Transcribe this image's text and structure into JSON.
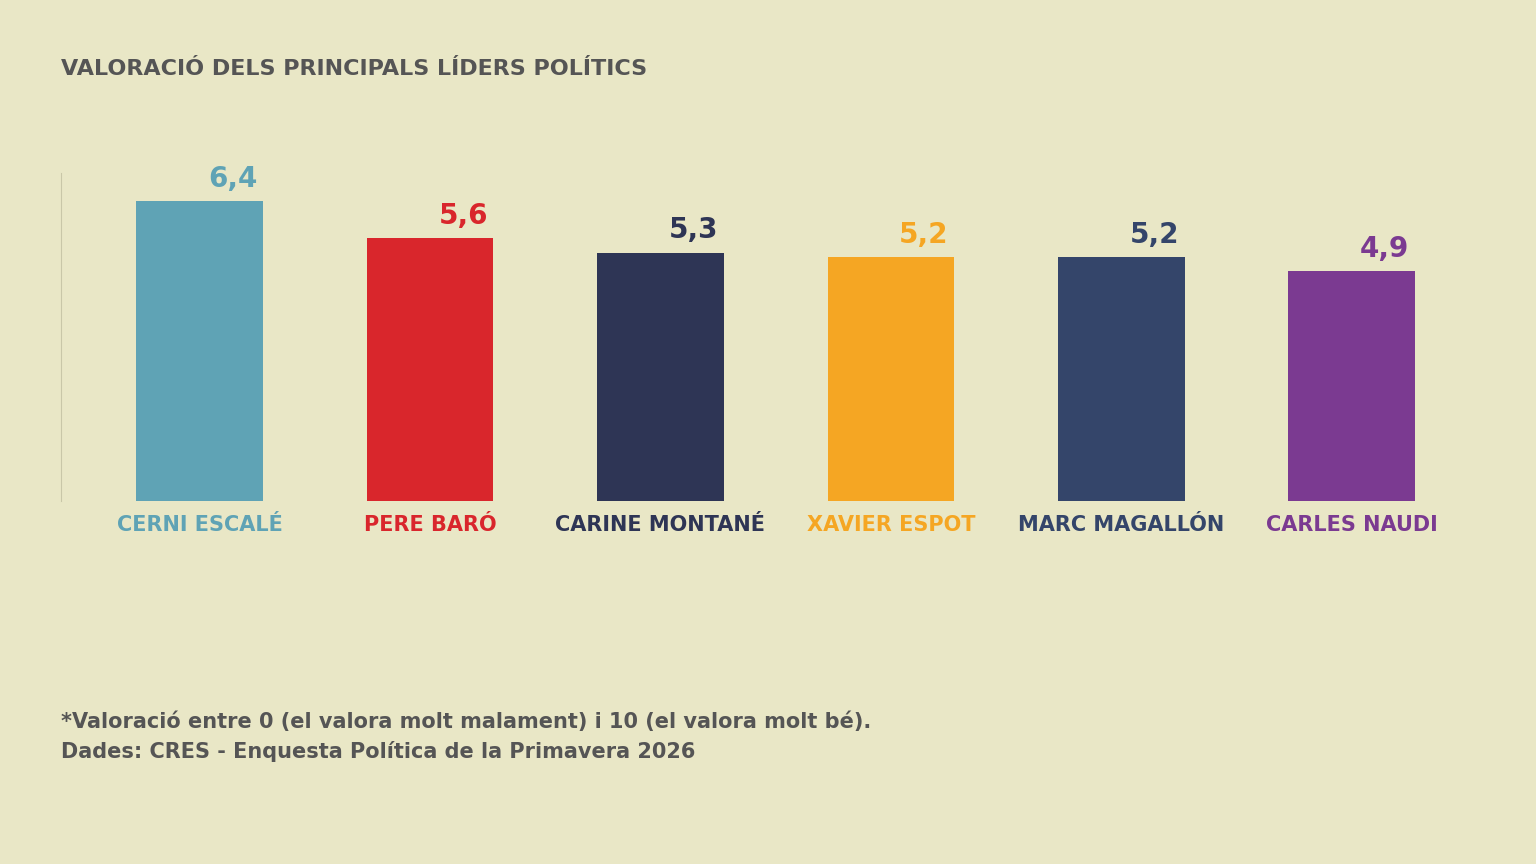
{
  "chart_data": {
    "type": "bar",
    "title": "VALORACIÓ DELS PRINCIPALS LÍDERS POLÍTICS",
    "categories": [
      "CERNI ESCALÉ",
      "PERE BARÓ",
      "CARINE MONTANÉ",
      "XAVIER ESPOT",
      "MARC MAGALLÓN",
      "CARLES NAUDI"
    ],
    "values": [
      6.4,
      5.6,
      5.3,
      5.2,
      5.2,
      4.9
    ],
    "value_labels": [
      "6,4",
      "5,6",
      "5,3",
      "5,2",
      "5,2",
      "4,9"
    ],
    "colors": [
      "#5fa3b5",
      "#d9262c",
      "#2e3555",
      "#f5a623",
      "#34456a",
      "#7b3a91"
    ],
    "data_labels": true,
    "tick_labels": "x",
    "ylim": [
      0,
      7
    ],
    "yticks": [],
    "grid": false,
    "annotations": [
      "*Valoració entre 0 (el valora molt malament) i 10 (el valora molt bé).",
      "Dades: CRES - Enquesta Política de la Primavera 2026"
    ]
  }
}
